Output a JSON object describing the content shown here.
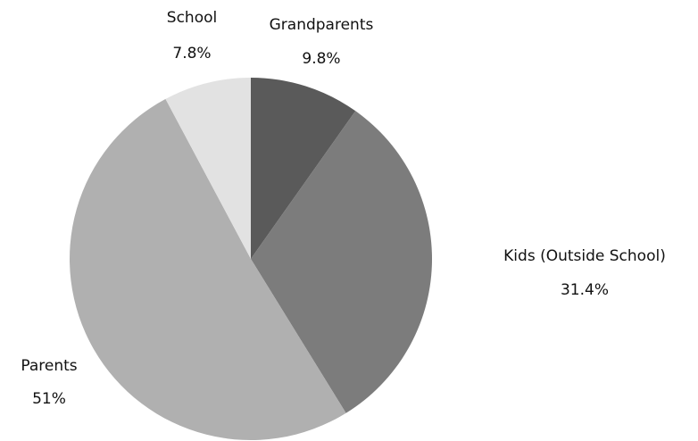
{
  "chart_data": {
    "type": "pie",
    "categories": [
      "Grandparents",
      "Kids (Outside School)",
      "Parents",
      "School"
    ],
    "values": [
      9.8,
      31.4,
      51,
      7.8
    ],
    "value_labels": [
      "9.8%",
      "31.4%",
      "51%",
      "7.8%"
    ],
    "colors": [
      "#5a5a5a",
      "#7c7c7c",
      "#b0b0b0",
      "#e2e2e2"
    ]
  }
}
